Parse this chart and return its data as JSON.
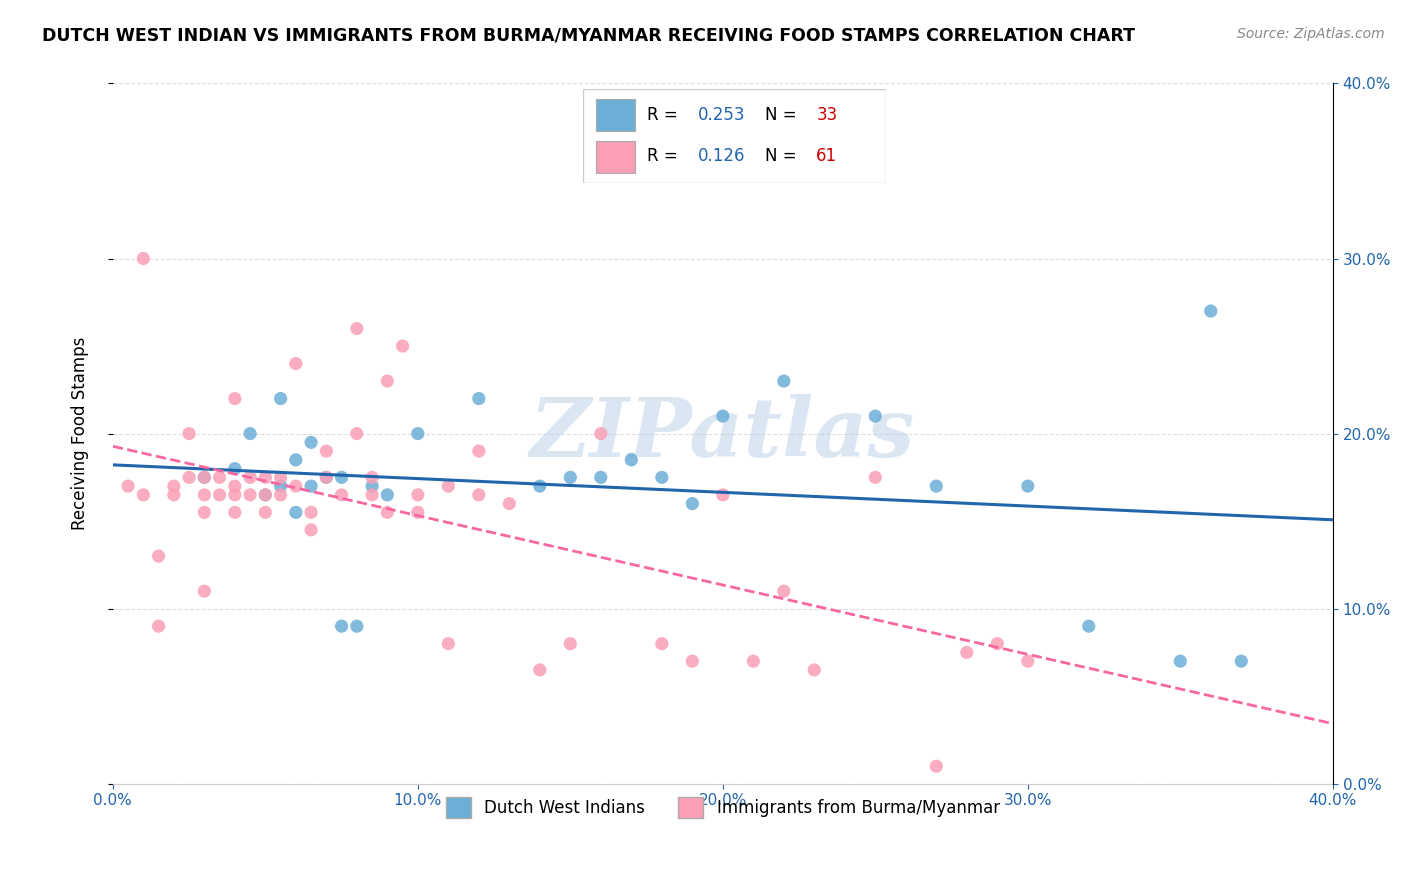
{
  "title": "DUTCH WEST INDIAN VS IMMIGRANTS FROM BURMA/MYANMAR RECEIVING FOOD STAMPS CORRELATION CHART",
  "source": "Source: ZipAtlas.com",
  "ylabel": "Receiving Food Stamps",
  "legend_label1": "Dutch West Indians",
  "legend_label2": "Immigrants from Burma/Myanmar",
  "R1": "0.253",
  "N1": "33",
  "R2": "0.126",
  "N2": "61",
  "blue_color": "#6baed6",
  "pink_color": "#fa9fb5",
  "blue_line_color": "#2166ac",
  "pink_line_color": "#f768a1",
  "watermark": "ZIPatlas",
  "xlim": [
    0.0,
    0.4
  ],
  "ylim": [
    0.0,
    0.4
  ],
  "blue_scatter_x": [
    0.055,
    0.04,
    0.06,
    0.065,
    0.05,
    0.07,
    0.06,
    0.045,
    0.055,
    0.03,
    0.065,
    0.075,
    0.08,
    0.085,
    0.09,
    0.075,
    0.1,
    0.12,
    0.14,
    0.15,
    0.16,
    0.17,
    0.18,
    0.19,
    0.2,
    0.22,
    0.25,
    0.27,
    0.3,
    0.32,
    0.35,
    0.37,
    0.36
  ],
  "blue_scatter_y": [
    0.17,
    0.18,
    0.185,
    0.17,
    0.165,
    0.175,
    0.155,
    0.2,
    0.22,
    0.175,
    0.195,
    0.175,
    0.09,
    0.17,
    0.165,
    0.09,
    0.2,
    0.22,
    0.17,
    0.175,
    0.175,
    0.185,
    0.175,
    0.16,
    0.21,
    0.23,
    0.21,
    0.17,
    0.17,
    0.09,
    0.07,
    0.07,
    0.27
  ],
  "pink_scatter_x": [
    0.005,
    0.01,
    0.01,
    0.015,
    0.02,
    0.02,
    0.025,
    0.025,
    0.03,
    0.03,
    0.03,
    0.035,
    0.035,
    0.04,
    0.04,
    0.04,
    0.045,
    0.045,
    0.05,
    0.05,
    0.05,
    0.055,
    0.055,
    0.06,
    0.06,
    0.065,
    0.065,
    0.07,
    0.07,
    0.075,
    0.08,
    0.08,
    0.085,
    0.085,
    0.09,
    0.09,
    0.095,
    0.1,
    0.1,
    0.11,
    0.11,
    0.12,
    0.12,
    0.13,
    0.14,
    0.15,
    0.16,
    0.18,
    0.19,
    0.2,
    0.21,
    0.22,
    0.23,
    0.25,
    0.27,
    0.28,
    0.29,
    0.3,
    0.015,
    0.03,
    0.04
  ],
  "pink_scatter_y": [
    0.17,
    0.165,
    0.3,
    0.13,
    0.17,
    0.165,
    0.2,
    0.175,
    0.175,
    0.165,
    0.155,
    0.175,
    0.165,
    0.17,
    0.165,
    0.155,
    0.175,
    0.165,
    0.175,
    0.165,
    0.155,
    0.175,
    0.165,
    0.24,
    0.17,
    0.155,
    0.145,
    0.19,
    0.175,
    0.165,
    0.26,
    0.2,
    0.175,
    0.165,
    0.155,
    0.23,
    0.25,
    0.165,
    0.155,
    0.17,
    0.08,
    0.165,
    0.19,
    0.16,
    0.065,
    0.08,
    0.2,
    0.08,
    0.07,
    0.165,
    0.07,
    0.11,
    0.065,
    0.175,
    0.01,
    0.075,
    0.08,
    0.07,
    0.09,
    0.11,
    0.22
  ]
}
